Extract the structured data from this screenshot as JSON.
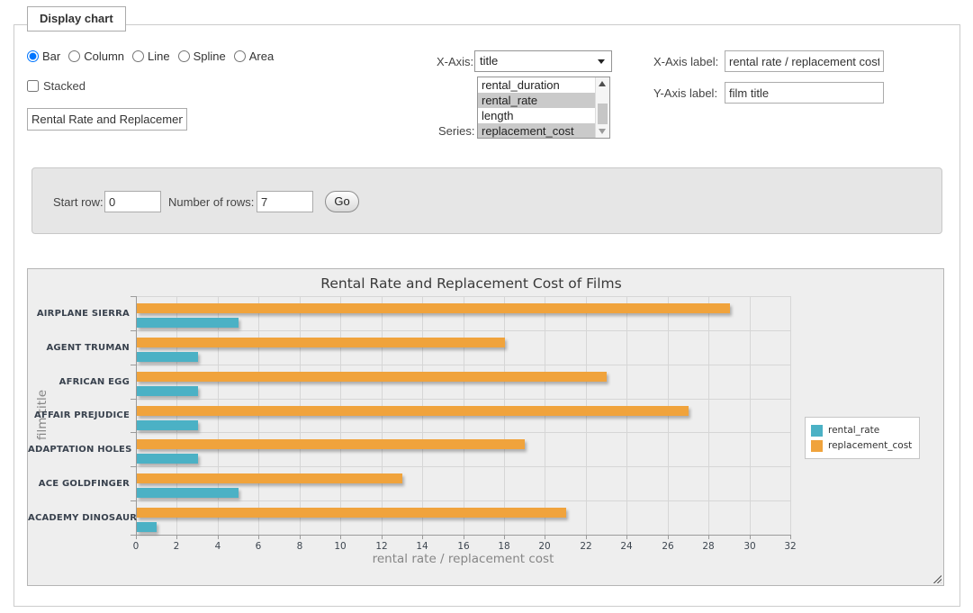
{
  "window": {
    "legend": "Display chart"
  },
  "chart_type": {
    "options": [
      {
        "label": "Bar",
        "selected": true
      },
      {
        "label": "Column",
        "selected": false
      },
      {
        "label": "Line",
        "selected": false
      },
      {
        "label": "Spline",
        "selected": false
      },
      {
        "label": "Area",
        "selected": false
      }
    ]
  },
  "stacked": {
    "label": "Stacked",
    "checked": false
  },
  "chart_title_input": {
    "value": "Rental Rate and Replacement Cost of Films"
  },
  "x_axis_select": {
    "label": "X-Axis:",
    "selected_value": "title"
  },
  "series_select": {
    "label": "Series:",
    "options": [
      {
        "label": "rental_duration",
        "selected": false
      },
      {
        "label": "rental_rate",
        "selected": true
      },
      {
        "label": "length",
        "selected": false
      },
      {
        "label": "replacement_cost",
        "selected": true
      }
    ]
  },
  "axis_label_inputs": {
    "x_label": "X-Axis label:",
    "x_value": "rental rate / replacement cost",
    "y_label": "Y-Axis label:",
    "y_value": "film title"
  },
  "row_controls": {
    "start_label": "Start row:",
    "start_value": "0",
    "count_label": "Number of rows:",
    "count_value": "7",
    "go_label": "Go"
  },
  "colors": {
    "rental_rate": "#4BB1C5",
    "replacement_cost": "#F0A33C",
    "selection_highlight": "#cacaca",
    "chart_background": "#eeeeee"
  },
  "chart_data": {
    "type": "bar",
    "title": "Rental Rate and Replacement Cost of Films",
    "categories": [
      "AIRPLANE SIERRA",
      "AGENT TRUMAN",
      "AFRICAN EGG",
      "AFFAIR PREJUDICE",
      "ADAPTATION HOLES",
      "ACE GOLDFINGER",
      "ACADEMY DINOSAUR"
    ],
    "series": [
      {
        "name": "rental_rate",
        "color": "#4BB1C5",
        "values": [
          4.99,
          2.99,
          2.99,
          2.99,
          2.99,
          4.99,
          0.99
        ]
      },
      {
        "name": "replacement_cost",
        "color": "#F0A33C",
        "values": [
          28.99,
          17.99,
          22.99,
          26.99,
          18.99,
          12.99,
          20.99
        ]
      }
    ],
    "bar_order_top_to_bottom": [
      "replacement_cost",
      "rental_rate"
    ],
    "xlabel": "rental rate / replacement cost",
    "ylabel": "film title",
    "xlim": [
      0,
      32
    ],
    "xtick_step": 2,
    "grid": true,
    "legend_position": "right"
  }
}
